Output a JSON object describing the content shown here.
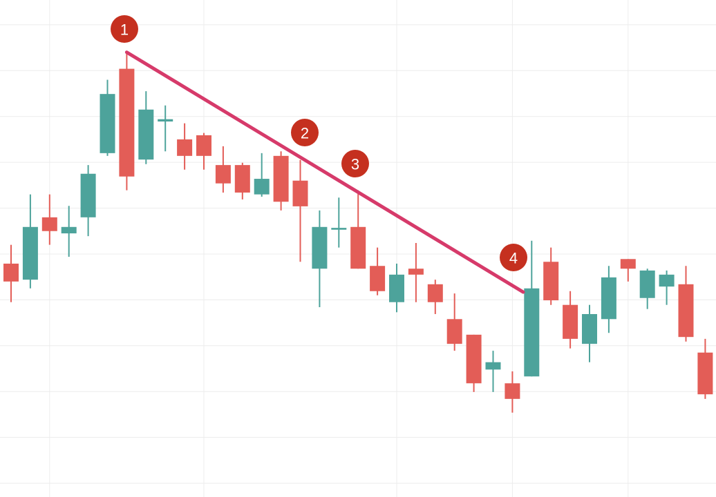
{
  "chart_data": {
    "type": "candlestick",
    "categories": [
      null,
      null,
      null,
      null,
      null,
      null,
      null,
      null,
      null,
      null,
      null,
      null,
      null,
      null,
      null,
      null,
      null,
      null,
      null,
      null,
      null,
      null,
      null,
      null,
      null,
      null,
      null,
      null,
      null,
      null,
      null,
      null,
      null,
      null,
      null,
      null,
      null
    ],
    "open": [
      5.79,
      5.44,
      6.8,
      6.45,
      6.8,
      8.2,
      10.04,
      8.06,
      8.89,
      8.5,
      8.59,
      7.94,
      7.94,
      7.3,
      8.14,
      7.6,
      5.68,
      6.53,
      6.59,
      5.74,
      4.95,
      5.68,
      5.34,
      4.58,
      4.24,
      3.48,
      3.18,
      3.33,
      5.83,
      4.89,
      4.04,
      4.58,
      5.89,
      5.04,
      5.29,
      5.34,
      3.85
    ],
    "high": [
      6.2,
      7.3,
      7.3,
      7.05,
      7.94,
      9.8,
      10.4,
      9.55,
      9.24,
      8.85,
      8.64,
      8.35,
      7.99,
      8.2,
      8.24,
      8.05,
      6.95,
      7.23,
      7.39,
      6.14,
      5.79,
      6.24,
      5.44,
      5.14,
      4.24,
      3.89,
      3.44,
      6.29,
      6.14,
      5.19,
      4.89,
      5.74,
      5.89,
      5.68,
      5.64,
      5.74,
      4.15
    ],
    "low": [
      4.95,
      5.25,
      6.2,
      5.94,
      6.39,
      8.14,
      7.39,
      7.96,
      8.24,
      7.84,
      7.84,
      7.34,
      7.19,
      7.25,
      6.95,
      5.83,
      4.84,
      6.14,
      5.68,
      5.1,
      4.73,
      4.95,
      4.69,
      3.89,
      2.99,
      2.99,
      2.54,
      3.33,
      4.89,
      3.94,
      3.64,
      4.28,
      5.4,
      4.8,
      4.89,
      4.09,
      2.84
    ],
    "close": [
      5.4,
      6.59,
      6.5,
      6.59,
      7.75,
      9.49,
      7.69,
      9.15,
      8.94,
      8.14,
      8.14,
      7.54,
      7.34,
      7.64,
      7.14,
      7.04,
      6.59,
      6.57,
      5.68,
      5.19,
      5.55,
      5.55,
      4.95,
      4.04,
      3.18,
      3.64,
      2.84,
      5.25,
      4.99,
      4.15,
      4.69,
      5.49,
      5.68,
      5.64,
      5.55,
      4.19,
      2.94
    ],
    "up_color": "#4da39b",
    "down_color": "#e35d57",
    "ylim": [
      0.7,
      11.54
    ],
    "yticks": [
      1,
      2,
      3,
      4,
      5,
      6,
      7,
      8,
      9,
      10,
      11
    ],
    "xgrid": [
      2,
      10,
      20,
      26,
      32
    ],
    "grid": true,
    "trendline": {
      "color": "#d63a6a",
      "from": [
        6,
        10.4
      ],
      "to": [
        26.56,
        5.17
      ]
    },
    "annotations": [
      {
        "text": "1"
      },
      {
        "text": "2"
      },
      {
        "text": "3"
      },
      {
        "text": "4"
      }
    ]
  }
}
